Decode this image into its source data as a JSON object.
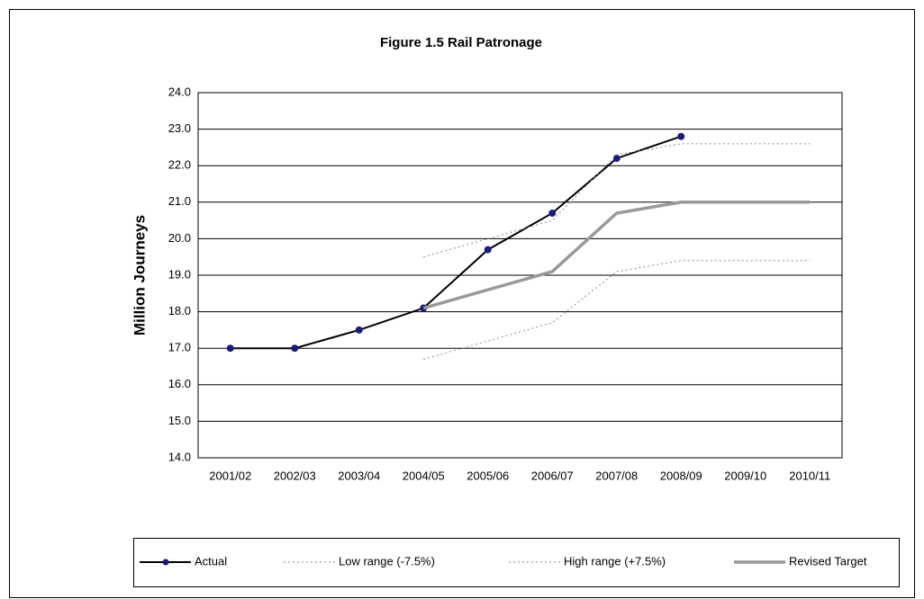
{
  "chart_data": {
    "type": "line",
    "title": "Figure 1.5 Rail Patronage",
    "y_label": "Million Journeys",
    "categories": [
      "2001/02",
      "2002/03",
      "2003/04",
      "2004/05",
      "2005/06",
      "2006/07",
      "2007/08",
      "2008/09",
      "2009/10",
      "2010/11"
    ],
    "series": [
      {
        "name": "Actual",
        "color": "#000000",
        "marker_color": "#1a1a80",
        "style": "solid",
        "width": 2,
        "marker": true,
        "values": [
          17.0,
          17.0,
          17.5,
          18.1,
          19.7,
          20.7,
          22.2,
          22.8,
          null,
          null
        ]
      },
      {
        "name": "Low range (-7.5%)",
        "color": "#8a8a8a",
        "style": "dotted",
        "width": 1,
        "marker": false,
        "values": [
          null,
          null,
          null,
          16.7,
          17.2,
          17.7,
          19.1,
          19.4,
          19.4,
          19.4
        ]
      },
      {
        "name": "High range (+7.5%)",
        "color": "#8a8a8a",
        "style": "dotted",
        "width": 1,
        "marker": false,
        "values": [
          null,
          null,
          null,
          19.5,
          20.0,
          20.5,
          22.3,
          22.6,
          22.6,
          22.6
        ]
      },
      {
        "name": "Revised Target",
        "color": "#999999",
        "style": "solid",
        "width": 3.5,
        "marker": false,
        "values": [
          null,
          null,
          null,
          18.1,
          18.6,
          19.1,
          20.7,
          21.0,
          21.0,
          21.0
        ]
      }
    ],
    "ylim": [
      14,
      24
    ],
    "yticks": [
      {
        "value": 14,
        "label": "14.0"
      },
      {
        "value": 15,
        "label": "15.0"
      },
      {
        "value": 16,
        "label": "16.0"
      },
      {
        "value": 17,
        "label": "17.0"
      },
      {
        "value": 18,
        "label": "18.0"
      },
      {
        "value": 19,
        "label": "19.0"
      },
      {
        "value": 20,
        "label": "20.0"
      },
      {
        "value": 21,
        "label": "21.0"
      },
      {
        "value": 22,
        "label": "22.0"
      },
      {
        "value": 23,
        "label": "23.0"
      },
      {
        "value": 24,
        "label": "24.0"
      }
    ],
    "grid": true,
    "legend": "bottom"
  }
}
